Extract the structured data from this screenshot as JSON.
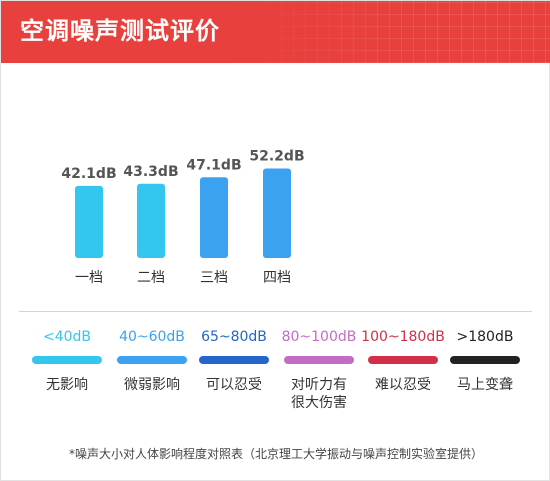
{
  "header": {
    "title": "空调噪声测试评价"
  },
  "chart_data": {
    "type": "bar",
    "categories": [
      "一档",
      "二档",
      "三档",
      "四档"
    ],
    "values": [
      42.1,
      43.3,
      47.1,
      52.2
    ],
    "value_labels": [
      "42.1dB",
      "43.3dB",
      "47.1dB",
      "52.2dB"
    ],
    "colors": [
      "#33c6ee",
      "#33c6ee",
      "#3aa2f0",
      "#3aa2f0"
    ],
    "ylim": [
      0,
      60
    ],
    "title": "",
    "xlabel": "",
    "ylabel": "",
    "grid": false
  },
  "legend": {
    "items": [
      {
        "range": "<40dB",
        "label": "无影响",
        "color": "#33c6ee"
      },
      {
        "range": "40~60dB",
        "label": "微弱影响",
        "color": "#3aa2f0"
      },
      {
        "range": "65~80dB",
        "label": "可以忍受",
        "color": "#2566c8"
      },
      {
        "range": "80~100dB",
        "label": "对听力有很大伤害",
        "color": "#c36cc4"
      },
      {
        "range": "100~180dB",
        "label": "难以忍受",
        "color": "#d13048"
      },
      {
        "range": ">180dB",
        "label": "马上变聋",
        "color": "#222222"
      }
    ]
  },
  "footnote": "*噪声大小对人体影响程度对照表（北京理工大学振动与噪声控制实验室提供）"
}
